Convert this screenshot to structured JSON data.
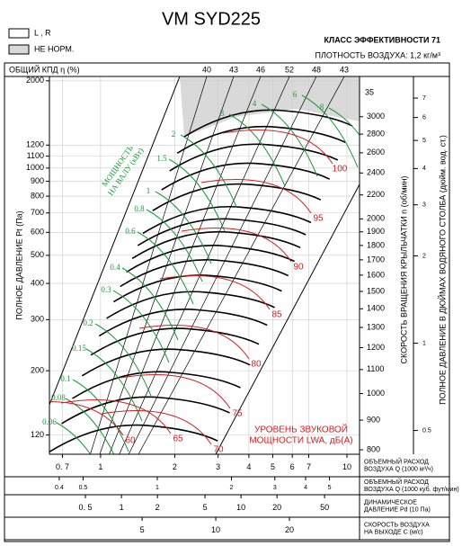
{
  "chart_data": {
    "type": "fan-chart",
    "title": "VM SYD225",
    "legend": [
      {
        "label": "L , R",
        "color": "#ffffff"
      },
      {
        "label": "НЕ НОРМ.",
        "color": "#d9d9d9"
      }
    ],
    "efficiency_class": "КЛАСС ЭФФЕКТИВНОСТИ 71",
    "air_density": "ПЛОТНОСТЬ ВОЗДУХА: 1,2 кг/м³",
    "efficiency_label": "ОБЩИЙ КПД η (%)",
    "efficiency_values": [
      40,
      43,
      46,
      52,
      48,
      43
    ],
    "ylabel": "ПОЛНОЕ ДАВЛЕНИЕ Pt (Па)",
    "ylog": true,
    "grid": true,
    "ylim": [
      103,
      2070
    ],
    "yticks": [
      2000,
      1200,
      1100,
      1000,
      900,
      800,
      700,
      600,
      500,
      400,
      300,
      200,
      120
    ],
    "rpm_label": "СКОРОСТЬ ВРАЩЕНИЯ КРЫЛЬЧАТКИ n (об/мин)",
    "rpm_top": "35",
    "rpm_lim": [
      786,
      3520
    ],
    "rpm_ticks": [
      3000,
      2800,
      2600,
      2400,
      2200,
      2000,
      1900,
      1800,
      1700,
      1600,
      1500,
      1400,
      1300,
      1200,
      1100,
      1000,
      900,
      800
    ],
    "inch_label": "ПОЛНОЕ ДАВЛЕНИЕ В ДЮЙМАХ ВОДЯНОГО СТОЛБА (дюйм. вод. ст.)",
    "inch_lim": [
      0.414,
      8.31
    ],
    "inch_ticks": [
      7,
      6,
      5,
      4,
      3,
      2,
      1,
      0.5
    ],
    "x_axes": [
      {
        "label": [
          "ОБЪЕМНЫЙ РАСХОД",
          "ВОЗДУХА Q (1000 м³/ч)"
        ],
        "xlim": [
          0.62,
          11.25
        ],
        "xticks": [
          {
            "value": 0.7,
            "label": "0. 7"
          },
          1,
          2,
          3,
          4,
          5,
          6,
          7,
          10
        ]
      },
      {
        "label": [
          "ОБЪЕМНЫЙ РАСХОД",
          "ВОЗДУХА Q (1000 куб. фут/мин)"
        ],
        "xlim": [
          0.365,
          6.62
        ],
        "xticks": [
          0.4,
          0.5,
          1,
          2,
          3,
          4,
          5
        ]
      },
      {
        "label": [
          "ДИНАМИЧЕСКОЕ",
          "ДАВЛЕНИЕ Pd (10 Па)"
        ],
        "xlim": [
          0.25,
          98
        ],
        "xticks": [
          {
            "value": 0.5,
            "label": "0. 5"
          },
          1,
          2,
          5,
          10,
          20,
          50
        ]
      },
      {
        "label": [
          "СКОРОСТЬ ВОЗДУХА",
          "НА ВЫХОДЕ C (м/с)"
        ],
        "xlim": [
          2.09,
          38.7
        ],
        "xticks": [
          5,
          10,
          20
        ]
      }
    ],
    "power_label": [
      "МОЩНОСТЬ",
      "НА ВАЛУ (кВт)"
    ],
    "power_values": [
      8,
      6,
      4,
      3,
      2,
      1.5,
      1,
      0.8,
      0.6,
      0.4,
      0.3,
      0.2,
      0.15,
      0.1,
      0.08,
      0.06
    ],
    "sound_label": [
      "УРОВЕНЬ ЗВУКОВОЙ",
      "МОЩНОСТИ LWA, дБ(A)"
    ],
    "sound_values": [
      100,
      95,
      90,
      85,
      80,
      75,
      70,
      65,
      60
    ]
  }
}
